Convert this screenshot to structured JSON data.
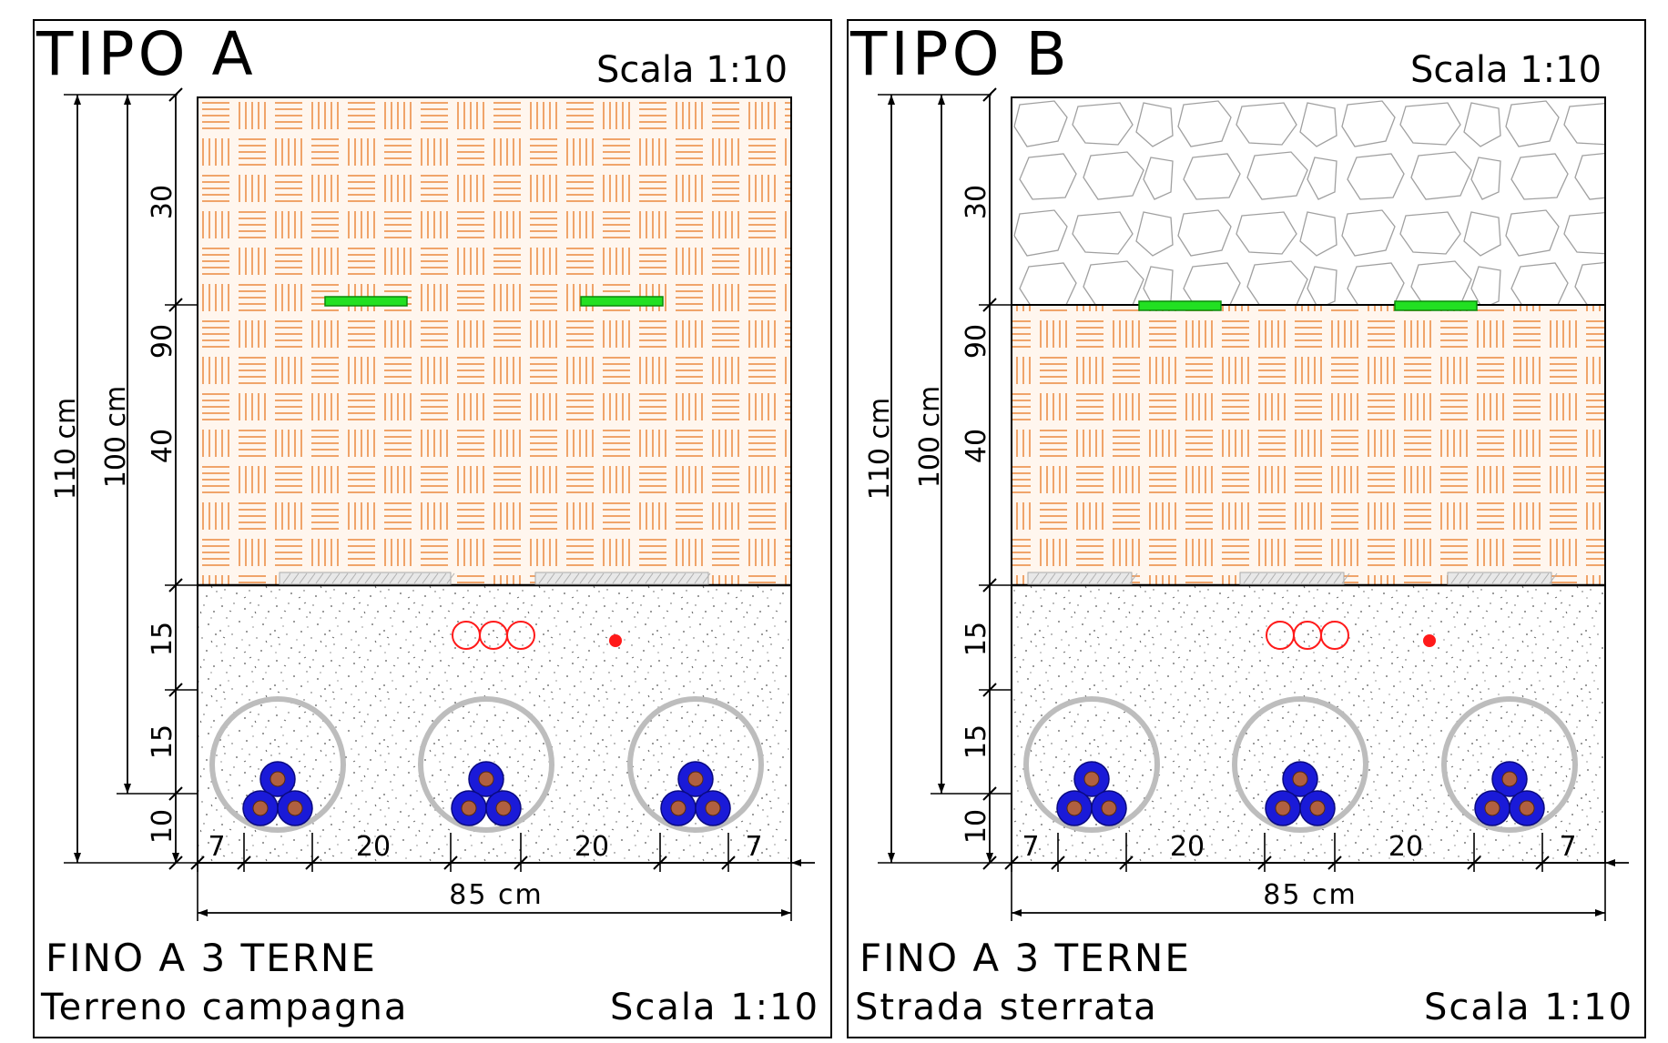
{
  "panels": [
    {
      "id": "a",
      "title": "TIPO A",
      "scale_top": "Scala 1:10",
      "dims_left": {
        "d110": "110 cm",
        "d100": "100 cm",
        "d90": "90",
        "s30": "30",
        "s40": "40",
        "s15a": "15",
        "s15b": "15",
        "s10": "10"
      },
      "dims_bottom": {
        "l7": "7",
        "l20a": "20",
        "l20b": "20",
        "r7": "7",
        "total": "85 cm"
      },
      "footer_line1": "FINO A 3 TERNE",
      "footer_line2": "Terreno campagna",
      "scale_bottom": "Scala 1:10",
      "top_layer": "hatch"
    },
    {
      "id": "b",
      "title": "TIPO B",
      "scale_top": "Scala 1:10",
      "dims_left": {
        "d110": "110 cm",
        "d100": "100 cm",
        "d90": "90",
        "s30": "30",
        "s40": "40",
        "s15a": "15",
        "s15b": "15",
        "s10": "10"
      },
      "dims_bottom": {
        "l7": "7",
        "l20a": "20",
        "l20b": "20",
        "r7": "7",
        "total": "85 cm"
      },
      "footer_line1": "FINO A 3 TERNE",
      "footer_line2": "Strada sterrata",
      "scale_bottom": "Scala 1:10",
      "top_layer": "stones"
    }
  ],
  "colors": {
    "hatch": "#f0a46a",
    "hatch_bg": "#fff6ee",
    "tape": "#22e022",
    "cable_outer": "#1a1ad8",
    "cable_core": "#b06040",
    "red_ring": "#ff1a1a",
    "tube": "#bdbdbd"
  }
}
